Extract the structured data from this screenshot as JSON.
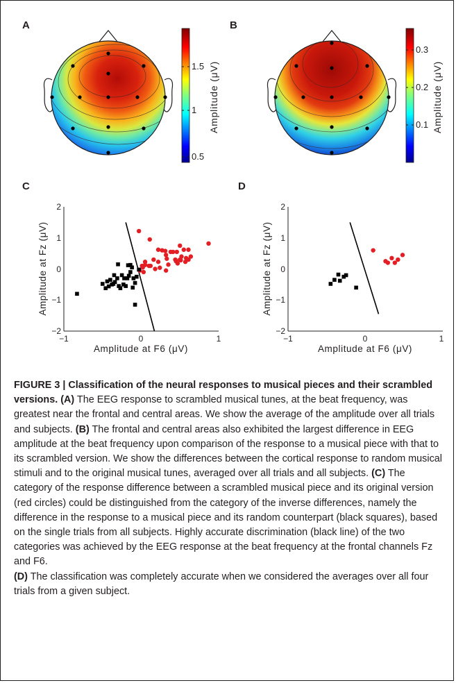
{
  "panels": {
    "a": {
      "letter": "A",
      "colorbar_ticks": [
        "1.5",
        "1",
        "0.5"
      ],
      "colorbar_label": "Amplitude (μV)",
      "scale": [
        0.5,
        1.9
      ]
    },
    "b": {
      "letter": "B",
      "colorbar_ticks": [
        "0.3",
        "0.2",
        "0.1"
      ],
      "colorbar_label": "Amplitude (μV)",
      "scale": [
        0.03,
        0.36
      ]
    },
    "c": {
      "letter": "C",
      "xlabel": "Amplitude at F6 (μV)",
      "ylabel": "Amplitude at Fz (μV)",
      "xticks": [
        "−1",
        "0",
        "1"
      ],
      "yticks": [
        "2",
        "1",
        "0",
        "−1",
        "−2"
      ]
    },
    "d": {
      "letter": "D",
      "xlabel": "Amplitude at F6 (μV)",
      "ylabel": "Amplitude at Fz (μV)",
      "xticks": [
        "−1",
        "0",
        "1"
      ],
      "yticks": [
        "2",
        "1",
        "0",
        "−1",
        "−2"
      ]
    }
  },
  "chart_data": [
    {
      "panel": "C",
      "type": "scatter",
      "xlabel": "Amplitude at F6 (μV)",
      "ylabel": "Amplitude at Fz (μV)",
      "xlim": [
        -1,
        1
      ],
      "ylim": [
        -2,
        2
      ],
      "series": [
        {
          "color": "#e31e24",
          "marker": "circle",
          "points": [
            [
              -0.03,
              1.22
            ],
            [
              0.11,
              0.95
            ],
            [
              0.31,
              0.58
            ],
            [
              0.46,
              0.55
            ],
            [
              0.5,
              0.75
            ],
            [
              0.87,
              0.82
            ],
            [
              0.02,
              0.05
            ],
            [
              0.1,
              0.1
            ],
            [
              0.12,
              0.1
            ],
            [
              0.16,
              0.3
            ],
            [
              0.22,
              0.62
            ],
            [
              0.27,
              0.6
            ],
            [
              0.33,
              0.33
            ],
            [
              0.38,
              0.55
            ],
            [
              0.41,
              0.55
            ],
            [
              0.45,
              0.25
            ],
            [
              0.5,
              0.3
            ],
            [
              0.52,
              0.4
            ],
            [
              0.55,
              0.62
            ],
            [
              0.58,
              0.35
            ],
            [
              0.61,
              0.3
            ],
            [
              0.64,
              0.4
            ],
            [
              0.35,
              0.14
            ],
            [
              0.22,
              0.23
            ],
            [
              0.05,
              0.23
            ],
            [
              0.01,
              0.1
            ],
            [
              0.32,
              0.45
            ],
            [
              0.24,
              0.04
            ],
            [
              0.18,
              0.0
            ],
            [
              -0.02,
              -0.05
            ],
            [
              0.03,
              -0.1
            ],
            [
              0.05,
              0.13
            ],
            [
              0.32,
              -0.05
            ],
            [
              0.44,
              0.3
            ],
            [
              0.51,
              0.28
            ],
            [
              0.57,
              0.23
            ],
            [
              0.61,
              0.62
            ],
            [
              0.47,
              0.18
            ]
          ]
        },
        {
          "color": "#000000",
          "marker": "square",
          "points": [
            [
              -0.83,
              -0.8
            ],
            [
              -0.5,
              -0.48
            ],
            [
              -0.46,
              -0.62
            ],
            [
              -0.42,
              -0.56
            ],
            [
              -0.4,
              -0.35
            ],
            [
              -0.38,
              -0.5
            ],
            [
              -0.36,
              -0.48
            ],
            [
              -0.34,
              -0.42
            ],
            [
              -0.31,
              -0.3
            ],
            [
              -0.29,
              -0.55
            ],
            [
              -0.27,
              -0.62
            ],
            [
              -0.25,
              -0.2
            ],
            [
              -0.23,
              -0.5
            ],
            [
              -0.2,
              -0.55
            ],
            [
              -0.18,
              -0.3
            ],
            [
              -0.16,
              -0.22
            ],
            [
              -0.14,
              -0.1
            ],
            [
              -0.12,
              0.05
            ],
            [
              -0.1,
              -0.3
            ],
            [
              -0.08,
              -0.45
            ],
            [
              -0.06,
              -0.25
            ],
            [
              -0.17,
              0.12
            ],
            [
              -0.14,
              0.13
            ],
            [
              -0.11,
              -0.6
            ],
            [
              -0.08,
              -1.15
            ],
            [
              -0.3,
              0.15
            ],
            [
              -0.35,
              -0.2
            ],
            [
              -0.44,
              -0.4
            ],
            [
              -0.03,
              -0.02
            ],
            [
              -0.22,
              -0.3
            ]
          ]
        }
      ],
      "decision_line": [
        [
          -0.2,
          1.5
        ],
        [
          0.17,
          -2.0
        ]
      ]
    },
    {
      "panel": "D",
      "type": "scatter",
      "xlabel": "Amplitude at F6 (μV)",
      "ylabel": "Amplitude at Fz (μV)",
      "xlim": [
        -1,
        1
      ],
      "ylim": [
        -2,
        2
      ],
      "series": [
        {
          "color": "#e31e24",
          "marker": "circle",
          "points": [
            [
              0.1,
              0.6
            ],
            [
              0.26,
              0.25
            ],
            [
              0.29,
              0.2
            ],
            [
              0.34,
              0.35
            ],
            [
              0.38,
              0.2
            ],
            [
              0.42,
              0.3
            ],
            [
              0.48,
              0.45
            ]
          ]
        },
        {
          "color": "#000000",
          "marker": "square",
          "points": [
            [
              -0.45,
              -0.48
            ],
            [
              -0.4,
              -0.35
            ],
            [
              -0.35,
              -0.18
            ],
            [
              -0.33,
              -0.38
            ],
            [
              -0.28,
              -0.25
            ],
            [
              -0.25,
              -0.2
            ],
            [
              -0.12,
              -0.6
            ]
          ]
        }
      ],
      "decision_line": [
        [
          -0.2,
          1.5
        ],
        [
          0.17,
          -1.45
        ]
      ]
    }
  ],
  "caption": {
    "figure_label": "FIGURE 3 | Classification of the neural responses to musical pieces and their scrambled versions.",
    "a_label": "(A)",
    "a_text": " The EEG response to scrambled musical tunes, at the beat frequency, was greatest near the frontal and central areas. We show the average of the amplitude over all trials and subjects. ",
    "b_label": "(B)",
    "b_text": " The frontal and central areas also exhibited the largest difference in EEG amplitude at the beat frequency upon comparison of the response to a musical piece with that to its scrambled version. We show the differences between the cortical response to random musical stimuli and to the original musical tunes, averaged over all trials and all subjects. ",
    "c_label": "(C)",
    "c_text": " The category of the response difference between a scrambled musical piece and its original version (red circles) could be distinguished from the category of the inverse differences, namely the difference in the response to a musical piece and its random counterpart (black squares), based on the single trials from all subjects. Highly accurate discrimination (black line) of the two categories was achieved by the EEG response at the beat frequency at the frontal channels Fz and F6.",
    "d_label": "(D)",
    "d_text": " The classification was completely accurate when we considered the averages over all four trials from a given subject."
  }
}
